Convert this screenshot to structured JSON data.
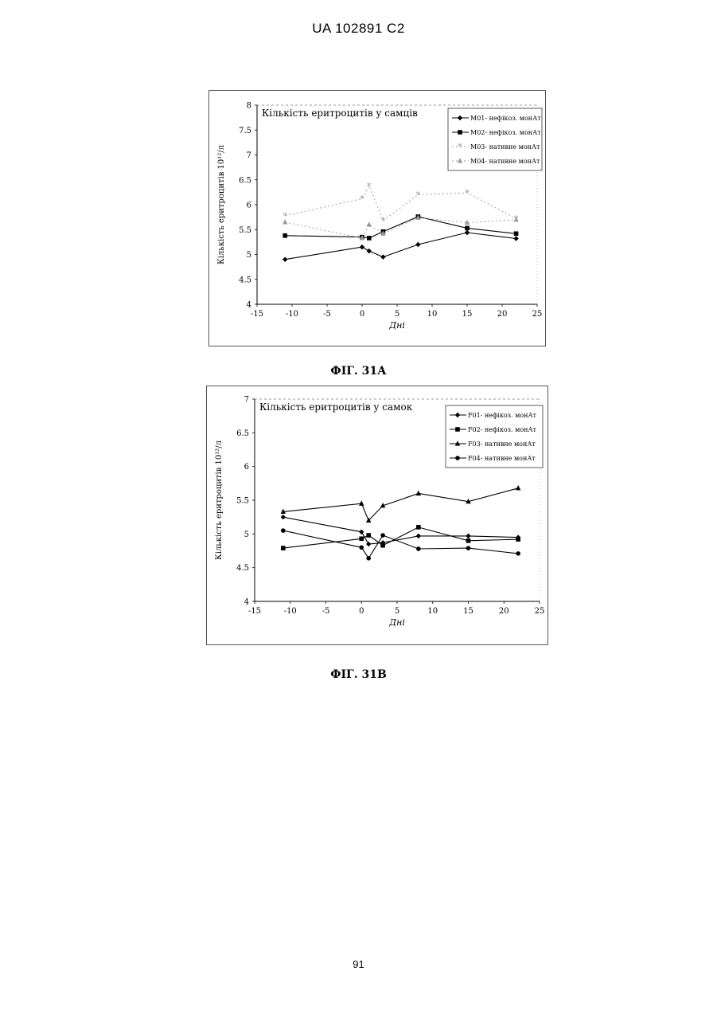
{
  "header": {
    "doc_id": "UA   102891   C2"
  },
  "page_number": "91",
  "chart_data": [
    {
      "type": "line",
      "caption": "ФІГ. 31А",
      "title": "Кількість еритроцитів у самців",
      "xlabel": "Дні",
      "ylabel": "Кількість еритроцитів 10¹²/л",
      "xlim": [
        -15,
        25
      ],
      "ylim": [
        4,
        8
      ],
      "xticks": [
        -15,
        -10,
        -5,
        0,
        5,
        10,
        15,
        20,
        25
      ],
      "yticks": [
        4,
        4.5,
        5,
        5.5,
        6,
        6.5,
        7,
        7.5,
        8
      ],
      "grid": false,
      "legend_position": "top-right",
      "series": [
        {
          "name": "M01- нефікоз. монАт",
          "marker": "diamond",
          "color": "#000000",
          "line": "solid",
          "x": [
            -11,
            0,
            1,
            3,
            8,
            15,
            22
          ],
          "y": [
            4.9,
            5.15,
            5.07,
            4.95,
            5.2,
            5.44,
            5.32
          ]
        },
        {
          "name": "M02- нефікоз. монАт",
          "marker": "square",
          "color": "#000000",
          "line": "solid",
          "x": [
            -11,
            0,
            1,
            3,
            8,
            15,
            22
          ],
          "y": [
            5.38,
            5.35,
            5.33,
            5.46,
            5.76,
            5.53,
            5.42
          ]
        },
        {
          "name": "M03- нативне монАт",
          "marker": "star",
          "color": "#9a9a9a",
          "line": "dotted",
          "x": [
            -11,
            0,
            1,
            3,
            8,
            15,
            22
          ],
          "y": [
            5.78,
            6.12,
            6.38,
            5.68,
            6.2,
            6.24,
            5.72
          ]
        },
        {
          "name": "M04- нативне монАт",
          "marker": "triangle",
          "color": "#9a9a9a",
          "line": "dotted",
          "x": [
            -11,
            0,
            1,
            3,
            8,
            15,
            22
          ],
          "y": [
            5.65,
            5.33,
            5.6,
            5.42,
            5.74,
            5.64,
            5.7
          ]
        }
      ]
    },
    {
      "type": "line",
      "caption": "ФІГ. 31В",
      "title": "Кількість еритроцитів у самок",
      "xlabel": "Дні",
      "ylabel": "Кількість еритроцитів 10¹²/л",
      "xlim": [
        -15,
        25
      ],
      "ylim": [
        4,
        7
      ],
      "xticks": [
        -15,
        -10,
        -5,
        0,
        5,
        10,
        15,
        20,
        25
      ],
      "yticks": [
        4,
        4.5,
        5,
        5.5,
        6,
        6.5,
        7
      ],
      "grid": false,
      "legend_position": "top-right",
      "series": [
        {
          "name": "F01- нефікоз. монАт",
          "marker": "diamond",
          "color": "#000000",
          "line": "solid",
          "x": [
            -11,
            0,
            1,
            3,
            8,
            15,
            22
          ],
          "y": [
            5.25,
            5.03,
            4.85,
            4.87,
            4.97,
            4.97,
            4.95
          ]
        },
        {
          "name": "F02- нефікоз. монАт",
          "marker": "square",
          "color": "#000000",
          "line": "solid",
          "x": [
            -11,
            0,
            1,
            3,
            8,
            15,
            22
          ],
          "y": [
            4.79,
            4.93,
            4.98,
            4.83,
            5.1,
            4.9,
            4.92
          ]
        },
        {
          "name": "F03- нативне монАт",
          "marker": "triangle",
          "color": "#000000",
          "line": "solid",
          "x": [
            -11,
            0,
            1,
            3,
            8,
            15,
            22
          ],
          "y": [
            5.33,
            5.45,
            5.2,
            5.42,
            5.6,
            5.48,
            5.68
          ]
        },
        {
          "name": "F04- нативне монАт",
          "marker": "circle",
          "color": "#000000",
          "line": "solid",
          "x": [
            -11,
            0,
            1,
            3,
            8,
            15,
            22
          ],
          "y": [
            5.05,
            4.8,
            4.64,
            4.98,
            4.78,
            4.79,
            4.71
          ]
        }
      ]
    }
  ]
}
